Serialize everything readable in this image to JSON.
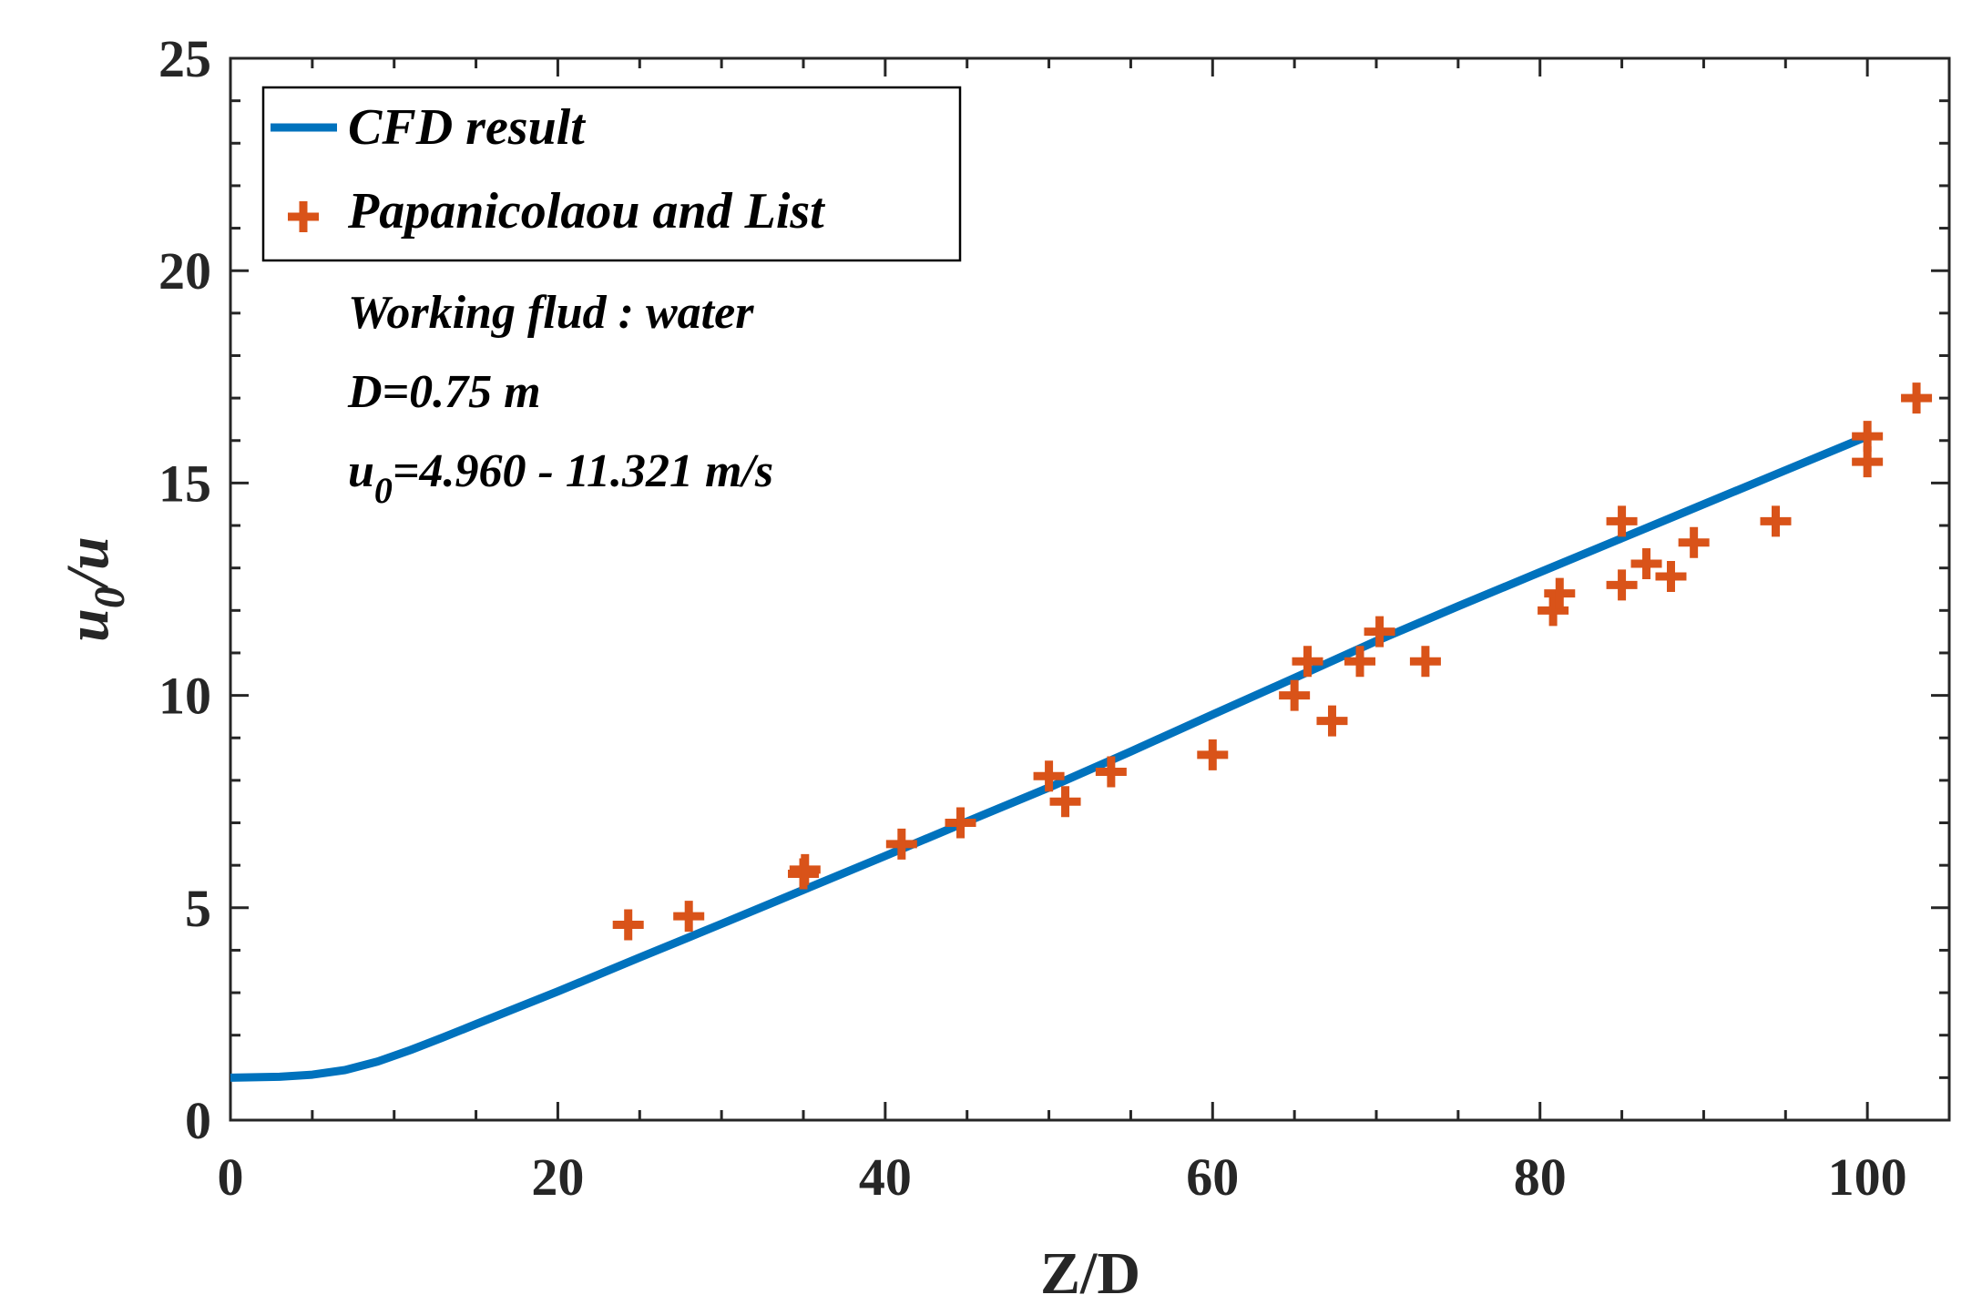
{
  "chart_data": {
    "type": "line",
    "xlabel": "Z/D",
    "ylabel": {
      "base": "u",
      "sub": "0",
      "rest": "/u"
    },
    "xlim": [
      0,
      105
    ],
    "ylim": [
      0,
      25
    ],
    "xticks": [
      0,
      20,
      40,
      60,
      80,
      100
    ],
    "yticks": [
      0,
      5,
      10,
      15,
      20,
      25
    ],
    "xtick_labels": [
      "0",
      "20",
      "40",
      "60",
      "80",
      "100"
    ],
    "ytick_labels": [
      "0",
      "5",
      "10",
      "15",
      "20",
      "25"
    ],
    "grid": false,
    "legend_position": "top-left",
    "series": [
      {
        "name": "CFD result",
        "kind": "line",
        "color": "#0072BD",
        "x": [
          0,
          3,
          5,
          7,
          9,
          11,
          13,
          15,
          20,
          25,
          30,
          35,
          40,
          45,
          50,
          55,
          60,
          65,
          70,
          75,
          80,
          85,
          90,
          95,
          100
        ],
        "y": [
          1.0,
          1.02,
          1.07,
          1.18,
          1.38,
          1.65,
          1.95,
          2.26,
          3.03,
          3.83,
          4.62,
          5.42,
          6.22,
          7.03,
          7.83,
          8.68,
          9.55,
          10.41,
          11.28,
          12.1,
          12.9,
          13.7,
          14.5,
          15.3,
          16.1
        ]
      },
      {
        "name": "Papanicolaou and List",
        "kind": "scatter",
        "marker": "+",
        "color": "#D95319",
        "x": [
          24.3,
          28,
          35,
          35.1,
          41,
          44.6,
          50,
          51,
          53.8,
          60,
          65,
          65.8,
          67.3,
          69,
          70.2,
          73,
          80.8,
          81.2,
          85,
          85,
          86.5,
          88,
          89.4,
          94.4,
          100,
          100,
          103
        ],
        "y": [
          4.6,
          4.8,
          5.8,
          5.9,
          6.5,
          7.0,
          8.1,
          7.5,
          8.2,
          8.6,
          10.0,
          10.8,
          9.4,
          10.8,
          11.5,
          10.8,
          12.0,
          12.4,
          14.1,
          12.6,
          13.1,
          12.8,
          13.6,
          14.1,
          15.5,
          16.1,
          17.0
        ]
      }
    ],
    "annotations": [
      {
        "text": "Working flud : water"
      },
      {
        "text": "D=0.75 m"
      },
      {
        "base": "u",
        "sub": "0",
        "rest": "=4.960 - 11.321 m/s"
      }
    ]
  }
}
